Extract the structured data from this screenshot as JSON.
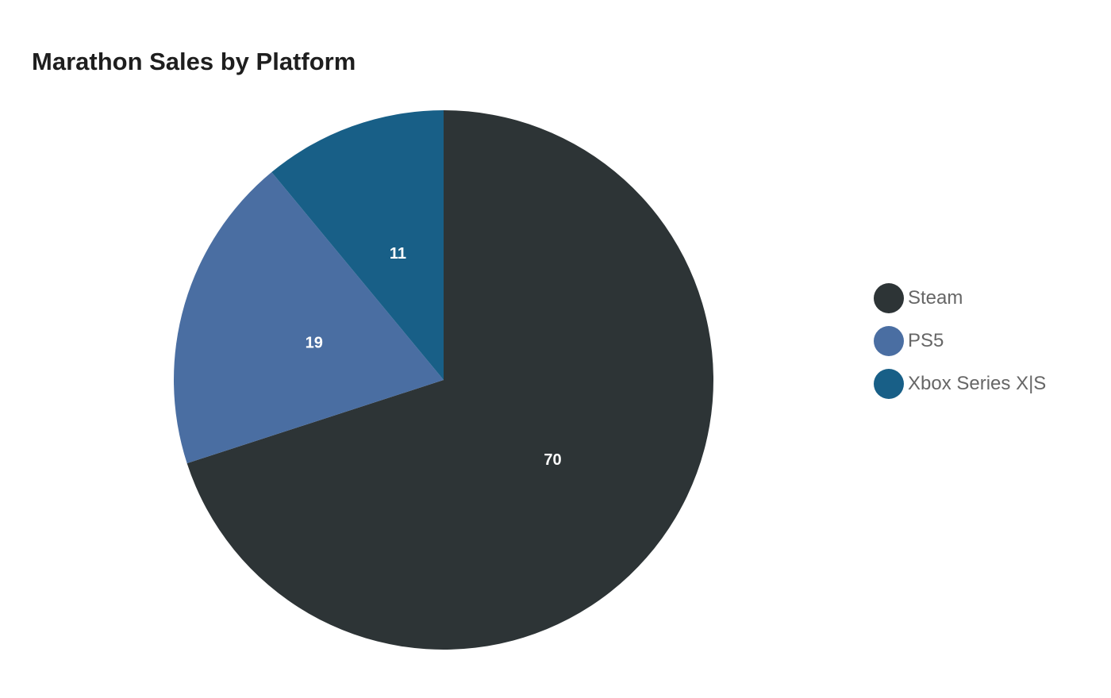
{
  "title": "Marathon Sales by Platform",
  "chart_data": {
    "type": "pie",
    "title": "Marathon Sales by Platform",
    "categories": [
      "Steam",
      "PS5",
      "Xbox Series X|S"
    ],
    "values": [
      70,
      19,
      11
    ],
    "colors": [
      "#2d3436",
      "#4a6ea2",
      "#185f87"
    ],
    "start_angle": "top (12 o'clock), clockwise",
    "data_labels": [
      "70",
      "19",
      "11"
    ],
    "legend_position": "right"
  },
  "legend": {
    "items": [
      {
        "label": "Steam",
        "color": "#2d3436"
      },
      {
        "label": "PS5",
        "color": "#4a6ea2"
      },
      {
        "label": "Xbox Series X|S",
        "color": "#185f87"
      }
    ]
  }
}
